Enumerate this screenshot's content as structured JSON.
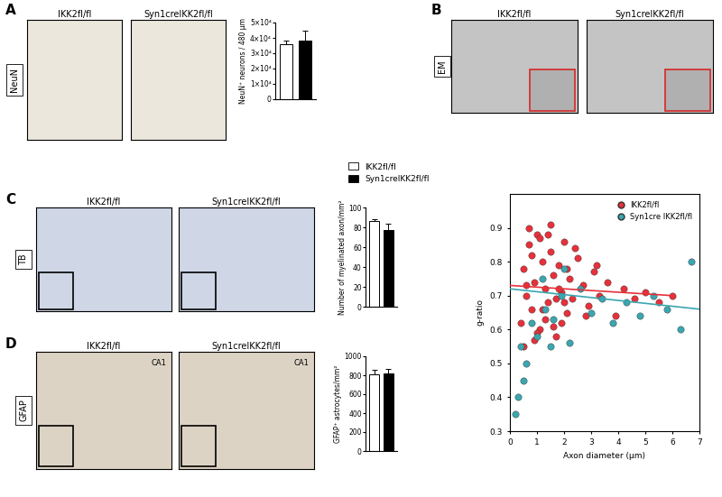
{
  "figure": {
    "panels": [
      {
        "letter": "A",
        "stain": "NeuN",
        "images": [
          "IKK2fl/fl",
          "Syn1creIKK2fl/fl"
        ]
      },
      {
        "letter": "B",
        "stain": "EM",
        "images": [
          "IKK2fl/fl",
          "Syn1creIKK2fl/fl"
        ]
      },
      {
        "letter": "C",
        "stain": "TB",
        "images": [
          "IKK2fl/fl",
          "Syn1creIKK2fl/fl"
        ]
      },
      {
        "letter": "D",
        "stain": "GFAP",
        "images": [
          "IKK2fl/fl",
          "Syn1creIKK2fl/fl"
        ],
        "image_region": "CA1"
      }
    ],
    "groups": [
      {
        "name": "IKK2fl/fl",
        "color": "#ffffff"
      },
      {
        "name": "Syn1creIKK2fl/fl",
        "color": "#000000"
      }
    ]
  },
  "chart_data": [
    {
      "type": "bar",
      "categories": [
        null,
        null
      ],
      "values": [
        36000,
        38000
      ],
      "errors": [
        2500,
        6500
      ],
      "colors": [
        "#ffffff",
        "#000000"
      ],
      "ylabel": "NeuN⁺ neurons / 480 µm",
      "ylim": [
        0,
        50000
      ],
      "yticks": [
        0,
        {
          "value": 10000,
          "label": "1×10⁴"
        },
        {
          "value": 20000,
          "label": "2×10⁴"
        },
        {
          "value": 30000,
          "label": "3×10⁴"
        },
        {
          "value": 40000,
          "label": "4×10⁴"
        },
        {
          "value": 50000,
          "label": "5×10⁴"
        }
      ]
    },
    {
      "type": "scatter",
      "xlabel": "Axon diameter (µm)",
      "ylabel": "g-ratio",
      "xlim": [
        0,
        7
      ],
      "xticks": [
        0,
        1,
        2,
        3,
        4,
        5,
        6,
        7
      ],
      "ylim": [
        0.3,
        1.0
      ],
      "yticks": [
        0.3,
        0.4,
        0.5,
        0.6,
        0.7,
        0.8,
        0.9
      ],
      "legend": "upper right",
      "series": [
        {
          "name": "IKK2fl/fl",
          "color": "#e8303a",
          "marker": "o",
          "x": [
            0.4,
            0.5,
            0.6,
            0.7,
            0.8,
            0.9,
            1.0,
            1.1,
            1.2,
            1.3,
            1.4,
            1.5,
            1.6,
            1.7,
            1.8,
            1.9,
            2.0,
            2.1,
            2.2,
            2.3,
            2.5,
            2.7,
            2.9,
            3.1,
            3.3,
            3.6,
            3.9,
            4.2,
            4.6,
            5.0,
            5.5,
            6.0,
            0.5,
            0.7,
            0.9,
            1.1,
            1.3,
            1.5,
            1.7,
            1.9,
            2.1,
            2.4,
            2.8,
            3.2,
            0.6,
            0.8,
            1.0,
            1.2,
            1.4,
            1.6,
            1.8,
            2.0
          ],
          "values": [
            0.62,
            0.78,
            0.7,
            0.85,
            0.66,
            0.74,
            0.88,
            0.6,
            0.8,
            0.72,
            0.68,
            0.83,
            0.76,
            0.58,
            0.79,
            0.71,
            0.86,
            0.65,
            0.75,
            0.69,
            0.81,
            0.73,
            0.67,
            0.77,
            0.7,
            0.74,
            0.64,
            0.72,
            0.69,
            0.71,
            0.68,
            0.7,
            0.55,
            0.9,
            0.57,
            0.87,
            0.63,
            0.91,
            0.69,
            0.62,
            0.78,
            0.84,
            0.64,
            0.79,
            0.73,
            0.82,
            0.59,
            0.66,
            0.88,
            0.61,
            0.72,
            0.68
          ]
        },
        {
          "name": "Syn1cre IKK2fl/fl",
          "color": "#3aa6b0",
          "marker": "o",
          "x": [
            0.2,
            0.3,
            0.4,
            0.6,
            0.8,
            1.0,
            1.3,
            1.6,
            1.9,
            2.2,
            2.6,
            3.0,
            3.4,
            3.8,
            4.3,
            4.8,
            5.3,
            5.8,
            6.3,
            6.7,
            1.2,
            2.0,
            0.5,
            1.5
          ],
          "values": [
            0.35,
            0.4,
            0.55,
            0.5,
            0.62,
            0.58,
            0.66,
            0.63,
            0.7,
            0.56,
            0.72,
            0.65,
            0.69,
            0.62,
            0.68,
            0.64,
            0.7,
            0.66,
            0.6,
            0.8,
            0.75,
            0.78,
            0.45,
            0.55
          ]
        },
        {
          "type": "line",
          "color": "#e8303a",
          "x": [
            0,
            6
          ],
          "values": [
            0.73,
            0.7
          ]
        },
        {
          "type": "line",
          "color": "#3aa6b0",
          "x": [
            0,
            7
          ],
          "values": [
            0.72,
            0.66
          ]
        }
      ]
    },
    {
      "type": "bar",
      "categories": [
        null,
        null
      ],
      "values": [
        86,
        77
      ],
      "errors": [
        2.5,
        7
      ],
      "colors": [
        "#ffffff",
        "#000000"
      ],
      "ylabel": "Number of myelinated axon/mm²",
      "ylim": [
        0,
        100
      ],
      "yticks": [
        0,
        20,
        40,
        60,
        80,
        100
      ]
    },
    {
      "type": "bar",
      "categories": [
        null,
        null
      ],
      "values": [
        810,
        815
      ],
      "errors": [
        45,
        50
      ],
      "colors": [
        "#ffffff",
        "#000000"
      ],
      "ylabel": "GFAP⁺ astrocytes/mm²",
      "ylim": [
        0,
        1000
      ],
      "yticks": [
        0,
        200,
        400,
        600,
        800,
        1000
      ]
    }
  ]
}
